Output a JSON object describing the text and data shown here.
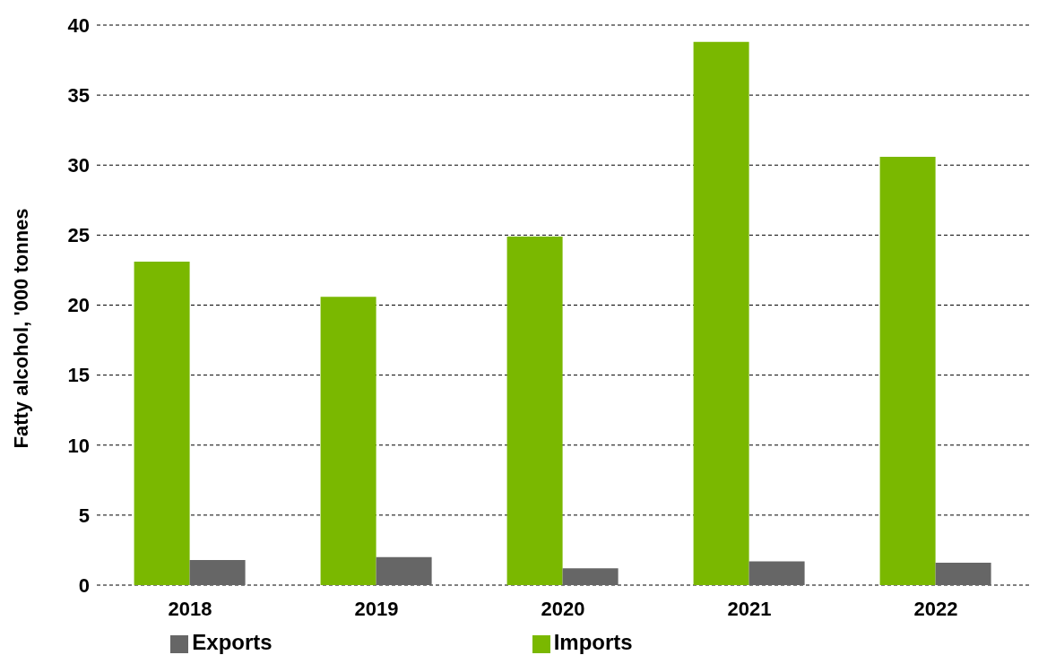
{
  "chart_data": {
    "type": "bar",
    "ylabel": "Fatty alcohol, '000 tonnes",
    "categories": [
      "2018",
      "2019",
      "2020",
      "2021",
      "2022"
    ],
    "series": [
      {
        "name": "Imports",
        "color": "#7ab800",
        "values": [
          23.1,
          20.6,
          24.9,
          38.8,
          30.6
        ]
      },
      {
        "name": "Exports",
        "color": "#666666",
        "values": [
          1.8,
          2.0,
          1.2,
          1.7,
          1.6
        ]
      }
    ],
    "ylim": [
      0,
      40
    ],
    "yticks": [
      0,
      5,
      10,
      15,
      20,
      25,
      30,
      35,
      40
    ],
    "grid": "y",
    "legend": "bottom"
  }
}
